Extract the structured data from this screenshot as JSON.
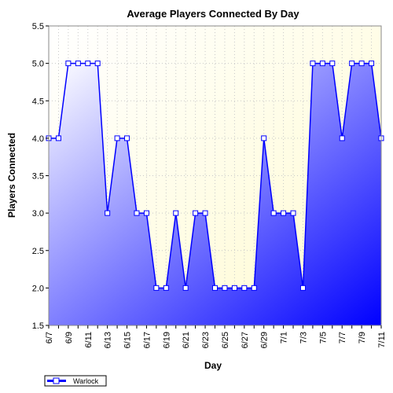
{
  "chart_data": {
    "type": "area",
    "title": "Average Players Connected By Day",
    "xlabel": "Day",
    "ylabel": "Players Connected",
    "x_tick_labels": [
      "6/7",
      "6/9",
      "6/11",
      "6/13",
      "6/15",
      "6/17",
      "6/19",
      "6/21",
      "6/23",
      "6/25",
      "6/27",
      "6/29",
      "7/1",
      "7/3",
      "7/5",
      "7/7",
      "7/9",
      "7/11"
    ],
    "x": [
      "6/7",
      "6/8",
      "6/9",
      "6/10",
      "6/11",
      "6/12",
      "6/13",
      "6/14",
      "6/15",
      "6/16",
      "6/17",
      "6/18",
      "6/19",
      "6/20",
      "6/21",
      "6/22",
      "6/23",
      "6/24",
      "6/25",
      "6/26",
      "6/27",
      "6/28",
      "6/29",
      "6/30",
      "7/1",
      "7/2",
      "7/3",
      "7/4",
      "7/5",
      "7/6",
      "7/7",
      "7/8",
      "7/9",
      "7/10",
      "7/11"
    ],
    "ylim": [
      1.5,
      5.5
    ],
    "y_ticks": [
      "1.5",
      "2.0",
      "2.5",
      "3.0",
      "3.5",
      "4.0",
      "4.5",
      "5.0",
      "5.5"
    ],
    "grid": true,
    "legend_position": "bottom-left",
    "series": [
      {
        "name": "Warlock",
        "values": [
          4,
          4,
          5,
          5,
          5,
          5,
          3,
          4,
          4,
          3,
          3,
          2,
          2,
          3,
          2,
          3,
          3,
          2,
          2,
          2,
          2,
          2,
          4,
          3,
          3,
          3,
          2,
          5,
          5,
          5,
          4,
          5,
          5,
          5,
          4
        ]
      }
    ],
    "colors": {
      "line": "#0000ff",
      "area_light": "#ffffff",
      "area_dark": "#0000ff",
      "plot_background_top": "#fffde0",
      "marker_fill": "#ffffff"
    }
  }
}
